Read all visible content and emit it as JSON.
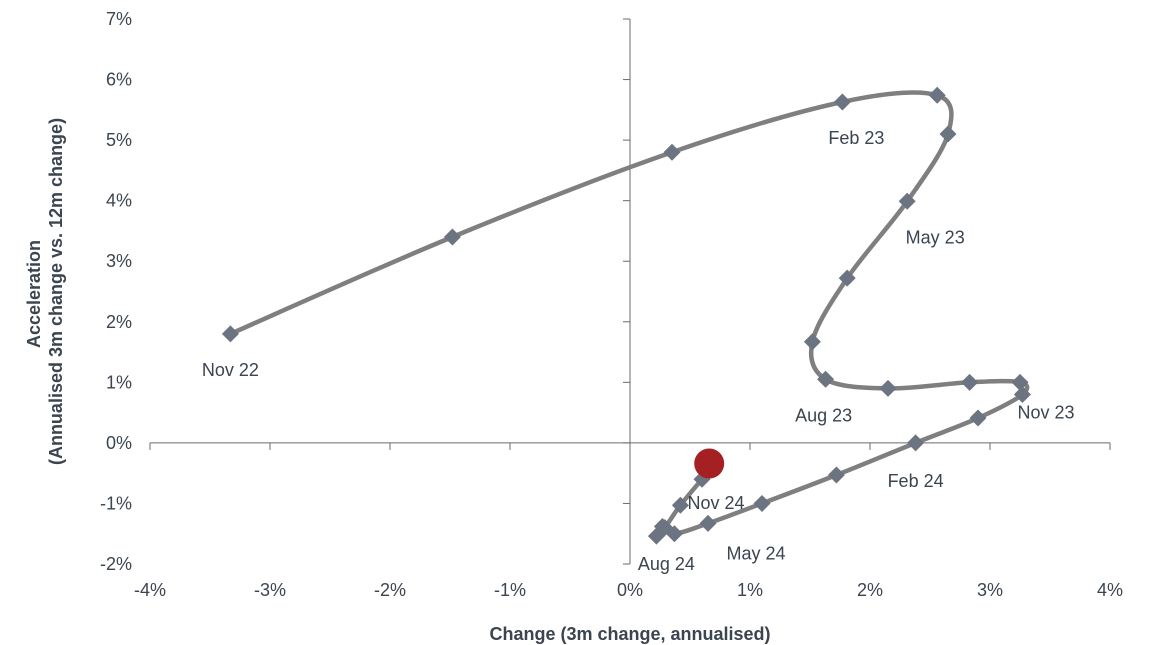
{
  "chart_data": {
    "type": "line",
    "title": "",
    "xlabel": "Change (3m change, annualised)",
    "ylabel_line1": "Acceleration",
    "ylabel_line2": "(Annualised 3m change vs. 12m change)",
    "xlim": [
      -4,
      4
    ],
    "ylim": [
      -2,
      7
    ],
    "x_ticks": [
      -4,
      -3,
      -2,
      -1,
      0,
      1,
      2,
      3,
      4
    ],
    "x_tick_labels": [
      "-4%",
      "-3%",
      "-2%",
      "-1%",
      "0%",
      "1%",
      "2%",
      "3%",
      "4%"
    ],
    "y_ticks": [
      -2,
      -1,
      0,
      1,
      2,
      3,
      4,
      5,
      6,
      7
    ],
    "y_tick_labels": [
      "-2%",
      "-1%",
      "0%",
      "1%",
      "2%",
      "3%",
      "4%",
      "5%",
      "6%",
      "7%"
    ],
    "grid": false,
    "series": [
      {
        "color": "#7f7f7f",
        "marker_color": "#6b7480",
        "points": [
          {
            "x": -3.33,
            "y": 1.8,
            "label": "Nov 22"
          },
          {
            "x": -1.48,
            "y": 3.4
          },
          {
            "x": 0.35,
            "y": 4.8
          },
          {
            "x": 1.77,
            "y": 5.63,
            "label": "Feb 23"
          },
          {
            "x": 2.56,
            "y": 5.74
          },
          {
            "x": 2.65,
            "y": 5.1
          },
          {
            "x": 2.31,
            "y": 3.99,
            "label": "May 23"
          },
          {
            "x": 1.81,
            "y": 2.72
          },
          {
            "x": 1.52,
            "y": 1.67
          },
          {
            "x": 1.63,
            "y": 1.05,
            "label": "Aug 23"
          },
          {
            "x": 2.15,
            "y": 0.9
          },
          {
            "x": 2.83,
            "y": 1.0
          },
          {
            "x": 3.25,
            "y": 1.0,
            "label": "Nov 23"
          },
          {
            "x": 3.27,
            "y": 0.8
          },
          {
            "x": 2.9,
            "y": 0.41
          },
          {
            "x": 2.38,
            "y": 0.0,
            "label": "Feb 24"
          },
          {
            "x": 1.72,
            "y": -0.53
          },
          {
            "x": 1.1,
            "y": -1.0
          },
          {
            "x": 0.65,
            "y": -1.33,
            "label": "May 24"
          },
          {
            "x": 0.37,
            "y": -1.5
          },
          {
            "x": 0.27,
            "y": -1.38
          },
          {
            "x": 0.22,
            "y": -1.54,
            "label": "Aug 24"
          },
          {
            "x": 0.29,
            "y": -1.4
          },
          {
            "x": 0.42,
            "y": -1.03
          },
          {
            "x": 0.6,
            "y": -0.6,
            "label": "Nov 24"
          }
        ]
      }
    ],
    "latest_point": {
      "x": 0.66,
      "y": -0.34,
      "color": "#a52022"
    }
  }
}
